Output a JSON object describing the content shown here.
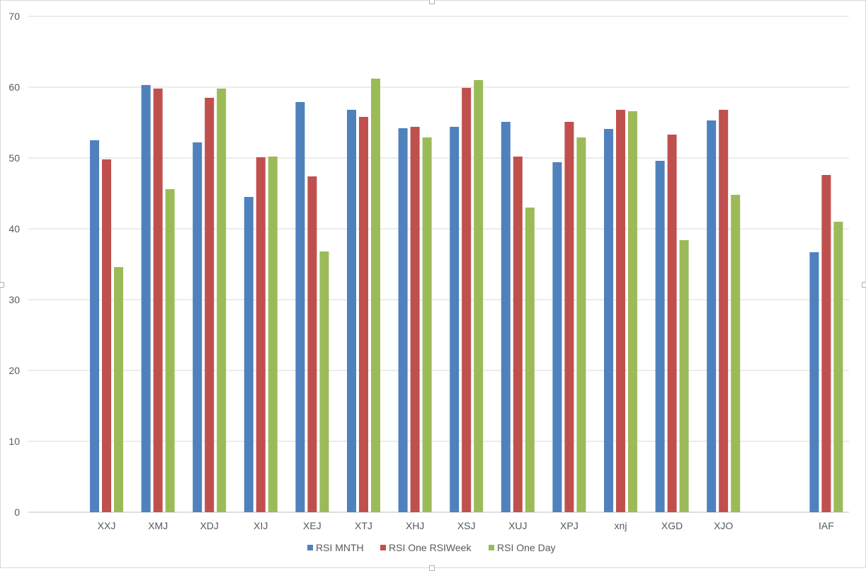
{
  "chart_data": {
    "type": "bar",
    "categories": [
      "XXJ",
      "XMJ",
      "XDJ",
      "XIJ",
      "XEJ",
      "XTJ",
      "XHJ",
      "XSJ",
      "XUJ",
      "XPJ",
      "xnj",
      "XGD",
      "XJO",
      "",
      "IAF"
    ],
    "series": [
      {
        "name": "RSI MNTH",
        "color": "#4f81bd",
        "values": [
          52.5,
          60.3,
          52.2,
          44.5,
          57.9,
          56.8,
          54.2,
          54.4,
          55.1,
          49.4,
          54.1,
          49.6,
          55.3,
          null,
          36.7
        ]
      },
      {
        "name": "RSI One RSIWeek",
        "color": "#c0504d",
        "values": [
          49.8,
          59.8,
          58.5,
          50.1,
          47.4,
          55.8,
          54.4,
          59.9,
          50.2,
          55.1,
          56.8,
          53.3,
          56.8,
          null,
          47.6
        ]
      },
      {
        "name": "RSI One Day",
        "color": "#9bbb59",
        "values": [
          34.6,
          45.6,
          59.8,
          50.2,
          36.8,
          61.2,
          52.9,
          61.0,
          43.0,
          52.9,
          56.6,
          38.4,
          44.8,
          null,
          41.0
        ]
      }
    ],
    "ylim": [
      0,
      70
    ],
    "yticks": [
      0,
      10,
      20,
      30,
      40,
      50,
      60,
      70
    ],
    "grid": true,
    "legend_position": "bottom"
  }
}
